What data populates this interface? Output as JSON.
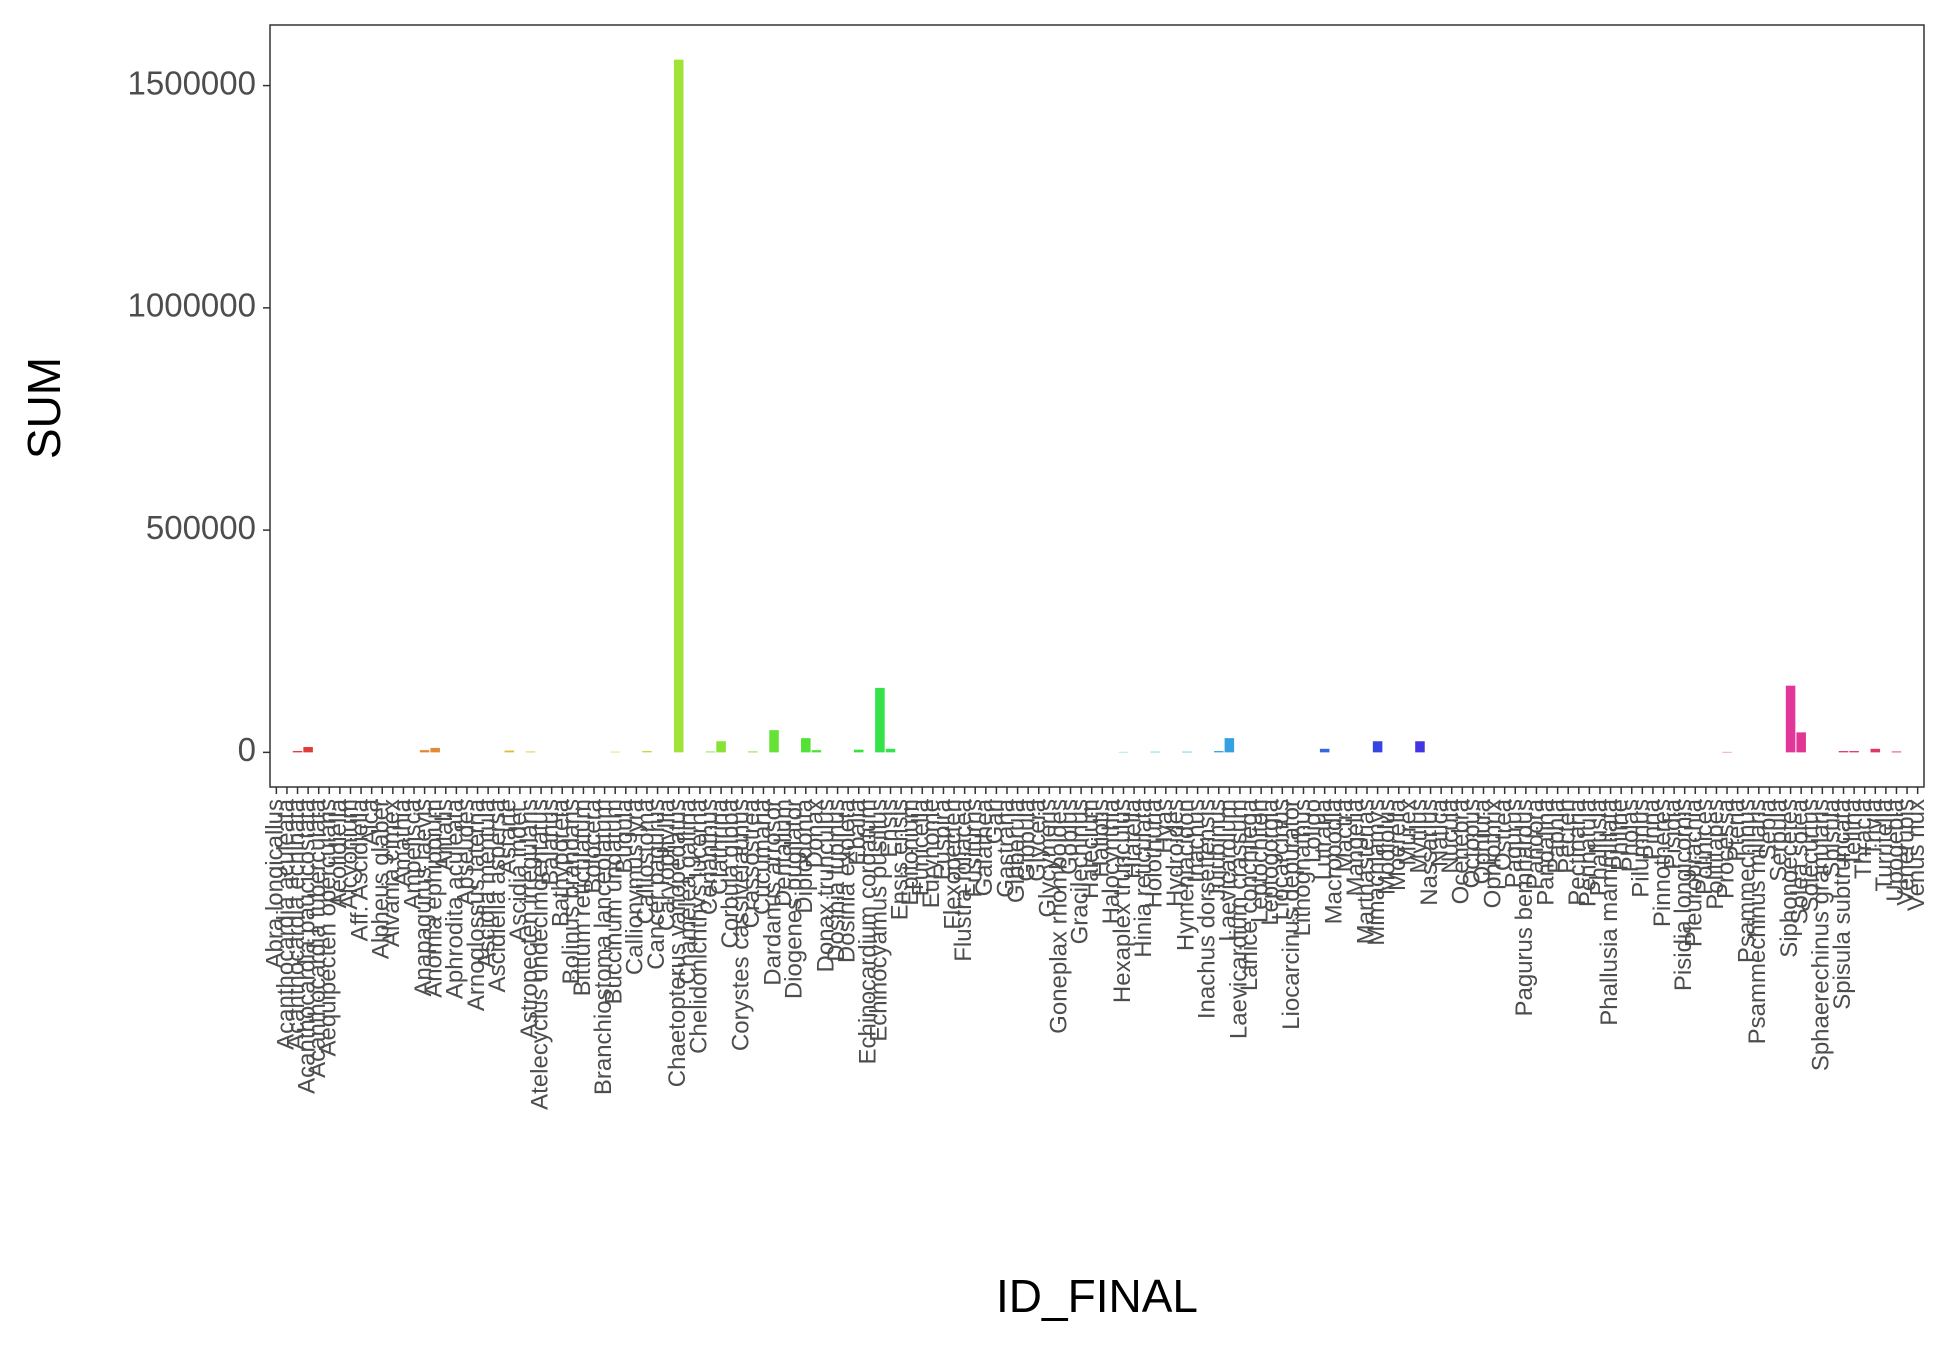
{
  "chart_data": {
    "type": "bar",
    "xlabel": "ID_FINAL",
    "ylabel": "SUM",
    "color_scale": "hue",
    "ylim": [
      -77920,
      1636320
    ],
    "yticks": [
      0,
      500000,
      1000000,
      1500000
    ],
    "categories": [
      "Abra longicallus",
      "Acanthocardia aculeata",
      "Acanthocardia echinata",
      "Acanthocardia paucicostata",
      "Acanthocardia tuberculata",
      "Aequipecten opercularis",
      "Aeolidiella",
      "Alcyonium",
      "Aff. Ascidiella",
      "Alca",
      "Alpheus glaber",
      "Alvania cimex",
      "Amathia",
      "Ampelisca",
      "Anapagurus laevis",
      "Anomia ephippium",
      "Antalis",
      "Aphrodita aculeata",
      "Apseudes",
      "Arnoglossus laterna",
      "Ascidia mentula",
      "Ascidiella aspersa",
      "Astarte",
      "Ascidia indet.",
      "Astropecten irregularis",
      "Atelecyclus undecimdentatus",
      "Balanus",
      "Bathyporeia",
      "Bolinus brandaris",
      "Bittium reticulatum",
      "Bolocera",
      "Branchiostoma lanceolatum",
      "Buccinum undatum",
      "Bugula",
      "Callionymus lyra",
      "Calliostoma",
      "Cancer pagurus",
      "Caryophyllia",
      "Chaetopterus variopedatus",
      "Chamelea gallina",
      "Chelidonichthys lucerna",
      "Cerianthus",
      "Clathrina",
      "Corbula gibba",
      "Corystes cassivelaunus",
      "Crassostrea",
      "Cucumaria",
      "Dardanus arrosor",
      "Dentalium",
      "Diogenes pugilator",
      "Diplodonta",
      "Donax",
      "Donax trunculus",
      "Dosinia lupinus",
      "Dosinia exoleta",
      "Ebalia",
      "Echinocardium cordatum",
      "Echinocyamus pusillus",
      "Ensis",
      "Ensis ensis",
      "Epitonium",
      "Eunicella",
      "Eurynome",
      "Euspira",
      "Flexopecten",
      "Flustra foliacea",
      "Fusiturris",
      "Galathea",
      "Gari",
      "Gastrana",
      "Gibberula",
      "Gibbula",
      "Glycera",
      "Glycymeris",
      "Goneplax rhomboides",
      "Gobius",
      "Gracilechinus",
      "Halecium",
      "Haliotis",
      "Halocynthia",
      "Hexaplex trunculus",
      "Hiatella",
      "Hinia reticulata",
      "Holothuria",
      "Hyas",
      "Hydroides",
      "Hymeniacidon",
      "Inachus",
      "Inachus dorsettensis",
      "Jujubinus",
      "Laevicardium",
      "Laevicardium crassum",
      "Lanice conchilega",
      "Leptochiton",
      "Leptogorgia",
      "Liocarcinus",
      "Liocarcinus depurator",
      "Lithognathus",
      "Loligo",
      "Lutraria",
      "Macropodia",
      "Mactra",
      "Mangelia",
      "Marthasterias",
      "Mimachlamys",
      "Modiolus",
      "Moerella",
      "Murex",
      "Mytilus",
      "Nassarius",
      "Natica",
      "Nucula",
      "Ocenebra",
      "Octopus",
      "Ophiura",
      "Ophiothrix",
      "Ostrea",
      "Pagurus",
      "Pagurus bernhardus",
      "Pandora",
      "Pandalina",
      "Paphia",
      "Pecten",
      "Pectinaria",
      "Pennatula",
      "Phallusia",
      "Phallusia mammillata",
      "Philine",
      "Pholas",
      "Pilumnus",
      "Pinna",
      "Pinnotheres",
      "Pisidia",
      "Pisidia longicornis",
      "Pleurobrachia",
      "Polinices",
      "Polititapes",
      "Processa",
      "Pteria",
      "Psammechinus",
      "Psammechinus miliaris",
      "Sepia",
      "Serpula",
      "Siphonoecetes",
      "Solea solea",
      "Solecurtus",
      "Sphaerechinus granularis",
      "Spisula",
      "Spisula subtruncata",
      "Tellina",
      "Thracia",
      "Trivia",
      "Turritella",
      "Upogebia",
      "Venerupis",
      "Venus nux"
    ],
    "values": [
      0,
      0,
      3000,
      12000,
      0,
      0,
      0,
      0,
      0,
      0,
      0,
      0,
      0,
      0,
      5000,
      10000,
      0,
      0,
      0,
      0,
      0,
      0,
      4000,
      0,
      2000,
      0,
      0,
      0,
      0,
      0,
      0,
      0,
      1500,
      0,
      0,
      3000,
      0,
      0,
      1558400,
      0,
      0,
      2000,
      25000,
      0,
      0,
      2000,
      0,
      50000,
      0,
      0,
      32000,
      5000,
      0,
      0,
      0,
      6000,
      0,
      145000,
      8000,
      0,
      0,
      0,
      0,
      0,
      0,
      0,
      0,
      0,
      0,
      0,
      0,
      0,
      0,
      0,
      0,
      0,
      0,
      0,
      0,
      0,
      1000,
      0,
      0,
      1500,
      0,
      0,
      1500,
      0,
      0,
      3000,
      32000,
      0,
      0,
      0,
      0,
      0,
      0,
      0,
      0,
      8000,
      0,
      0,
      0,
      0,
      25000,
      0,
      0,
      0,
      25000,
      0,
      0,
      0,
      0,
      0,
      0,
      0,
      0,
      0,
      0,
      0,
      0,
      0,
      0,
      0,
      0,
      0,
      0,
      0,
      0,
      0,
      0,
      0,
      0,
      0,
      0,
      0,
      0,
      1000,
      0,
      0,
      0,
      0,
      0,
      150000,
      45000,
      0,
      0,
      0,
      3000,
      3000,
      0,
      8000,
      0,
      2000,
      0,
      0
    ]
  }
}
